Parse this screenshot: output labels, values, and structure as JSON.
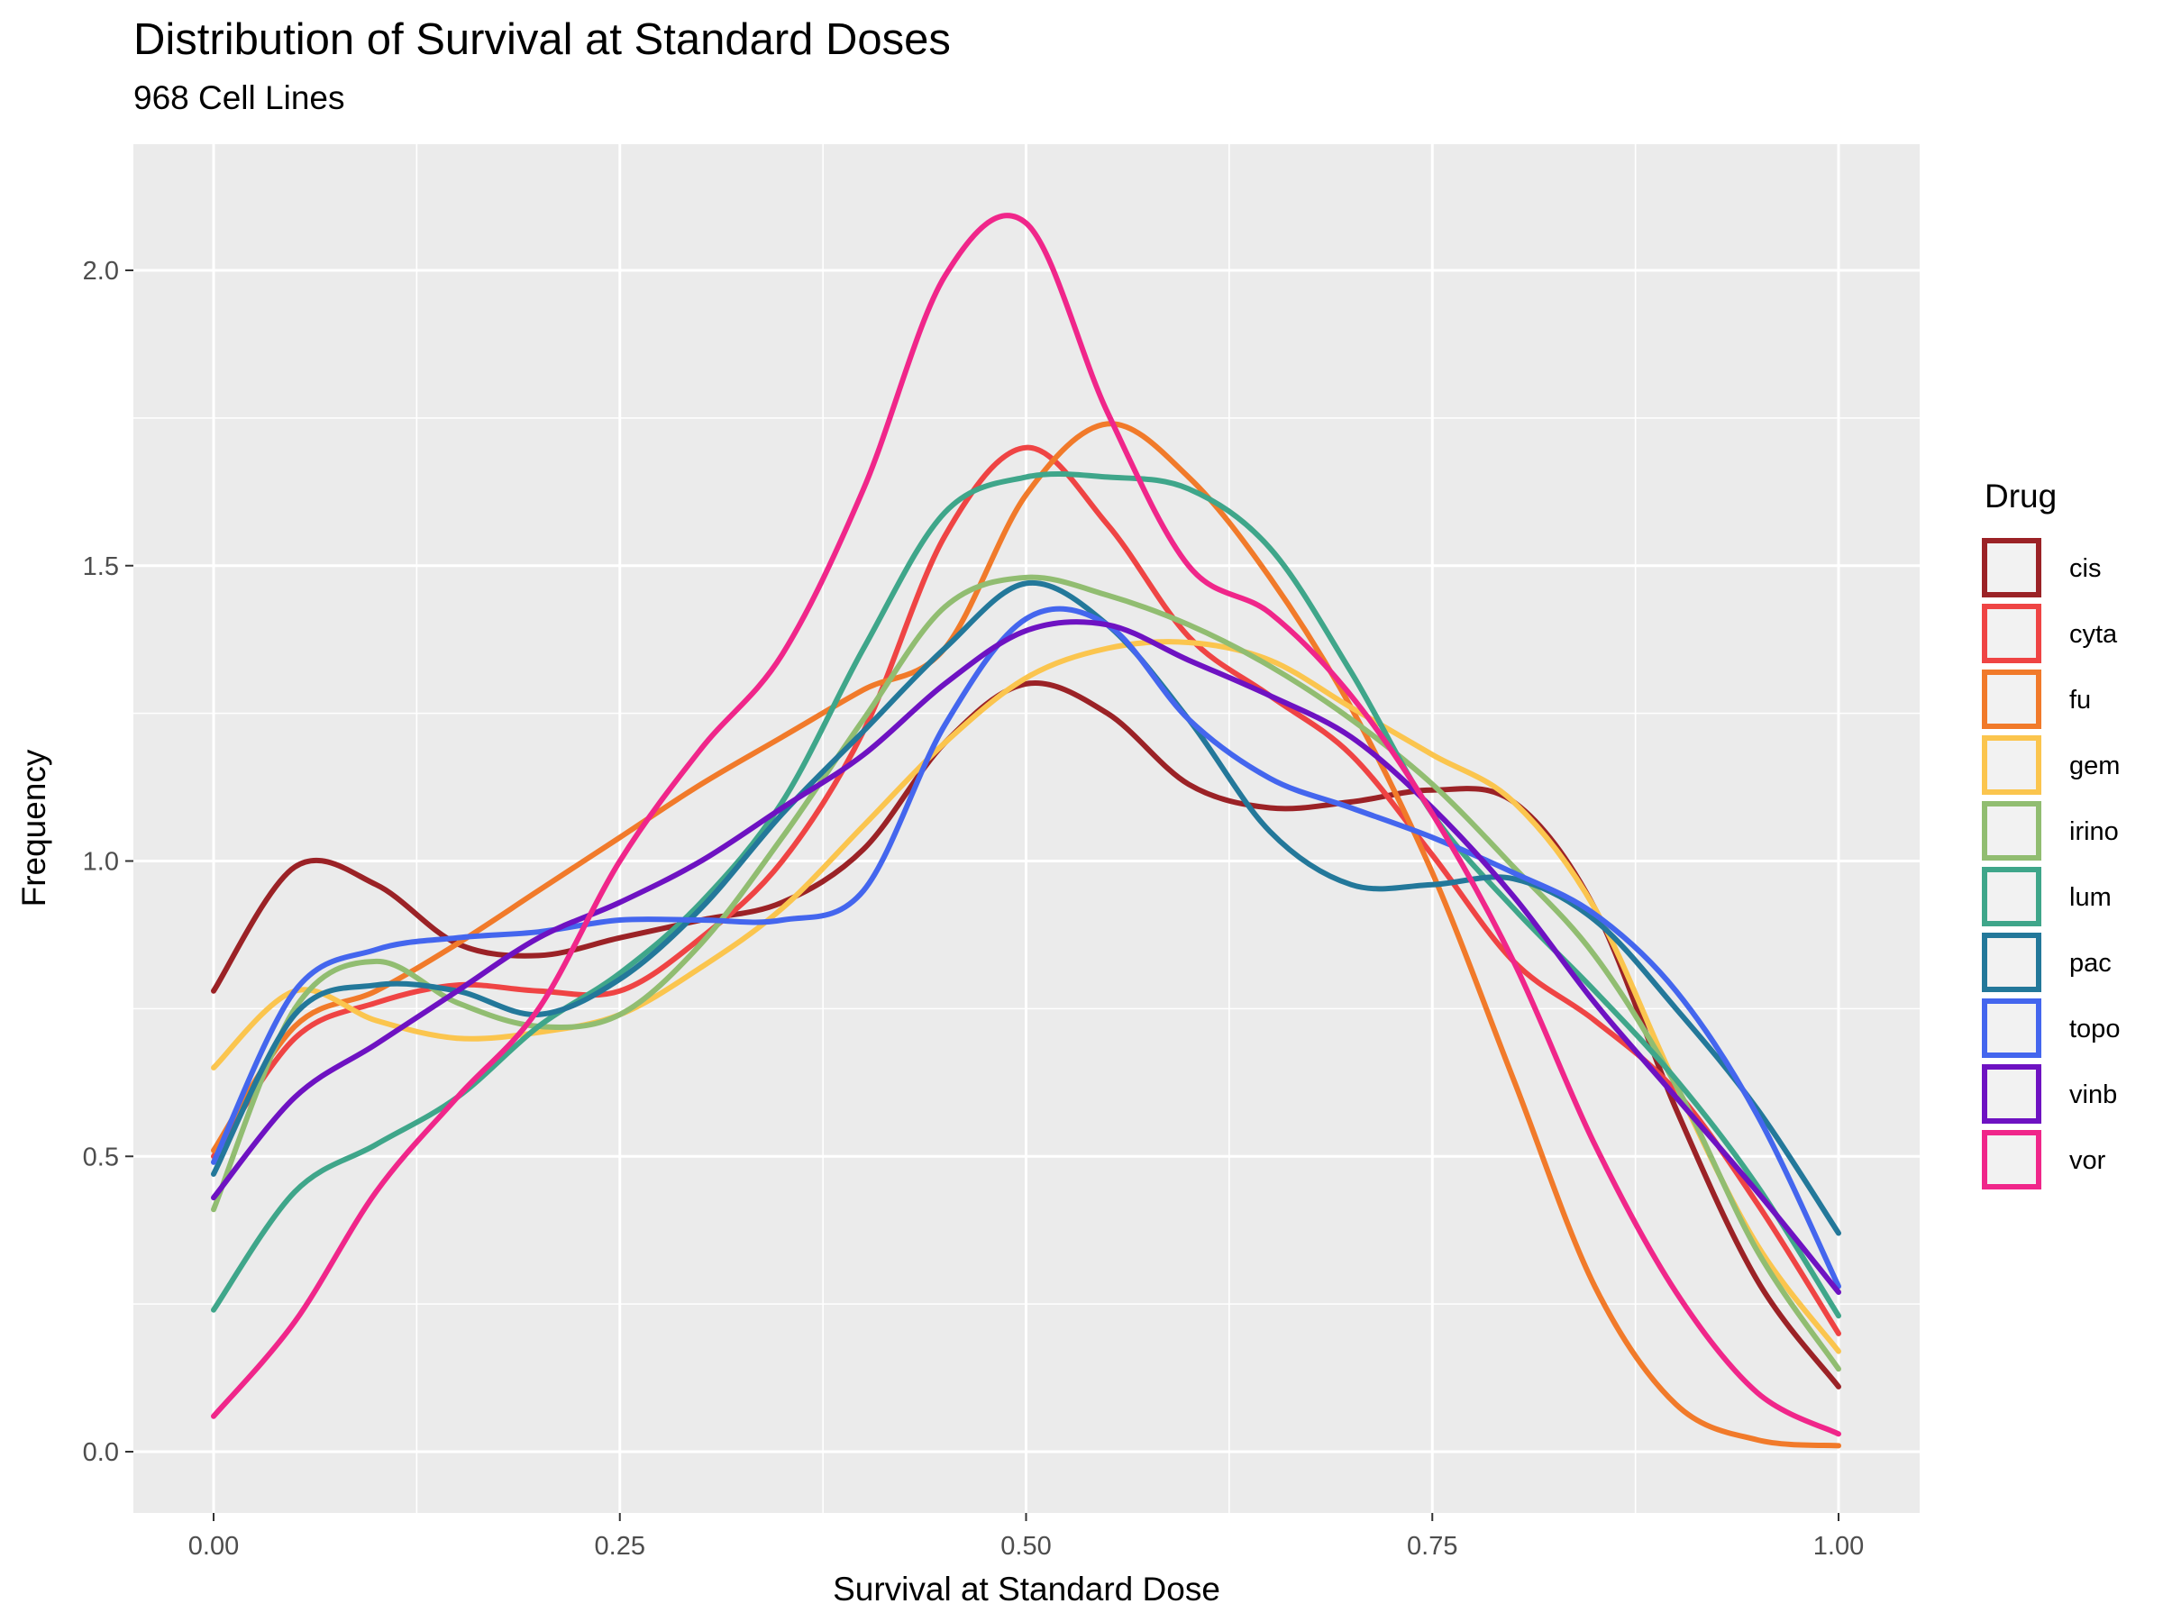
{
  "chart_data": {
    "type": "line",
    "title": "Distribution of Survival at Standard Doses",
    "subtitle": "968 Cell Lines",
    "xlabel": "Survival at Standard Dose",
    "ylabel": "Frequency",
    "xlim": [
      -0.1,
      1.05
    ],
    "ylim": [
      -0.1,
      2.2
    ],
    "x_ticks": [
      0,
      0.25,
      0.5,
      0.75,
      1.0
    ],
    "x_tick_labels": [
      "0.00",
      "0.25",
      "0.50",
      "0.75",
      "1.00"
    ],
    "y_ticks": [
      0,
      0.5,
      1.0,
      1.5,
      2.0
    ],
    "y_tick_labels": [
      "0.0",
      "0.5",
      "1.0",
      "1.5",
      "2.0"
    ],
    "grid": true,
    "legend_title": "Drug",
    "legend_position": "right",
    "x": [
      0,
      0.05,
      0.1,
      0.15,
      0.2,
      0.25,
      0.3,
      0.35,
      0.4,
      0.45,
      0.5,
      0.55,
      0.6,
      0.65,
      0.7,
      0.75,
      0.8,
      0.85,
      0.9,
      0.95,
      1.0
    ],
    "series": [
      {
        "name": "cis",
        "color": "#9B2226",
        "values": [
          0.78,
          0.99,
          0.96,
          0.86,
          0.84,
          0.87,
          0.9,
          0.93,
          1.02,
          1.2,
          1.3,
          1.25,
          1.13,
          1.09,
          1.1,
          1.12,
          1.1,
          0.92,
          0.58,
          0.29,
          0.11
        ]
      },
      {
        "name": "cyta",
        "color": "#EF4444",
        "values": [
          0.5,
          0.7,
          0.76,
          0.79,
          0.78,
          0.78,
          0.87,
          1.0,
          1.22,
          1.55,
          1.7,
          1.57,
          1.38,
          1.28,
          1.18,
          1.01,
          0.83,
          0.73,
          0.61,
          0.42,
          0.2
        ]
      },
      {
        "name": "fu",
        "color": "#F17A2A",
        "values": [
          0.51,
          0.72,
          0.78,
          0.86,
          0.95,
          1.04,
          1.13,
          1.21,
          1.29,
          1.36,
          1.62,
          1.74,
          1.65,
          1.48,
          1.26,
          0.98,
          0.63,
          0.28,
          0.08,
          0.02,
          0.01
        ]
      },
      {
        "name": "gem",
        "color": "#FBC54E",
        "values": [
          0.65,
          0.78,
          0.73,
          0.7,
          0.71,
          0.74,
          0.82,
          0.92,
          1.06,
          1.2,
          1.31,
          1.36,
          1.37,
          1.34,
          1.26,
          1.18,
          1.1,
          0.92,
          0.62,
          0.35,
          0.17
        ]
      },
      {
        "name": "irino",
        "color": "#91BD71",
        "values": [
          0.41,
          0.75,
          0.83,
          0.76,
          0.72,
          0.74,
          0.86,
          1.04,
          1.24,
          1.43,
          1.48,
          1.45,
          1.4,
          1.33,
          1.24,
          1.13,
          0.99,
          0.84,
          0.62,
          0.34,
          0.14
        ]
      },
      {
        "name": "lum",
        "color": "#3FA68A",
        "values": [
          0.24,
          0.44,
          0.52,
          0.6,
          0.72,
          0.81,
          0.93,
          1.1,
          1.36,
          1.59,
          1.65,
          1.65,
          1.63,
          1.53,
          1.32,
          1.08,
          0.92,
          0.78,
          0.63,
          0.45,
          0.23
        ]
      },
      {
        "name": "pac",
        "color": "#23789A",
        "values": [
          0.47,
          0.74,
          0.79,
          0.78,
          0.74,
          0.8,
          0.92,
          1.08,
          1.22,
          1.36,
          1.47,
          1.4,
          1.24,
          1.05,
          0.96,
          0.96,
          0.97,
          0.9,
          0.75,
          0.58,
          0.37
        ]
      },
      {
        "name": "topo",
        "color": "#4466EE",
        "values": [
          0.49,
          0.78,
          0.85,
          0.87,
          0.88,
          0.9,
          0.9,
          0.9,
          0.95,
          1.23,
          1.41,
          1.4,
          1.24,
          1.14,
          1.09,
          1.04,
          0.98,
          0.91,
          0.78,
          0.57,
          0.28
        ]
      },
      {
        "name": "vinb",
        "color": "#6E12C2",
        "values": [
          0.43,
          0.6,
          0.69,
          0.78,
          0.87,
          0.93,
          1.0,
          1.09,
          1.18,
          1.3,
          1.39,
          1.4,
          1.34,
          1.28,
          1.21,
          1.09,
          0.94,
          0.76,
          0.6,
          0.44,
          0.27
        ]
      },
      {
        "name": "vor",
        "color": "#F0268A",
        "values": [
          0.06,
          0.22,
          0.44,
          0.6,
          0.75,
          1.0,
          1.19,
          1.35,
          1.63,
          1.99,
          2.08,
          1.76,
          1.5,
          1.42,
          1.28,
          1.08,
          0.83,
          0.52,
          0.27,
          0.1,
          0.03
        ]
      }
    ]
  }
}
